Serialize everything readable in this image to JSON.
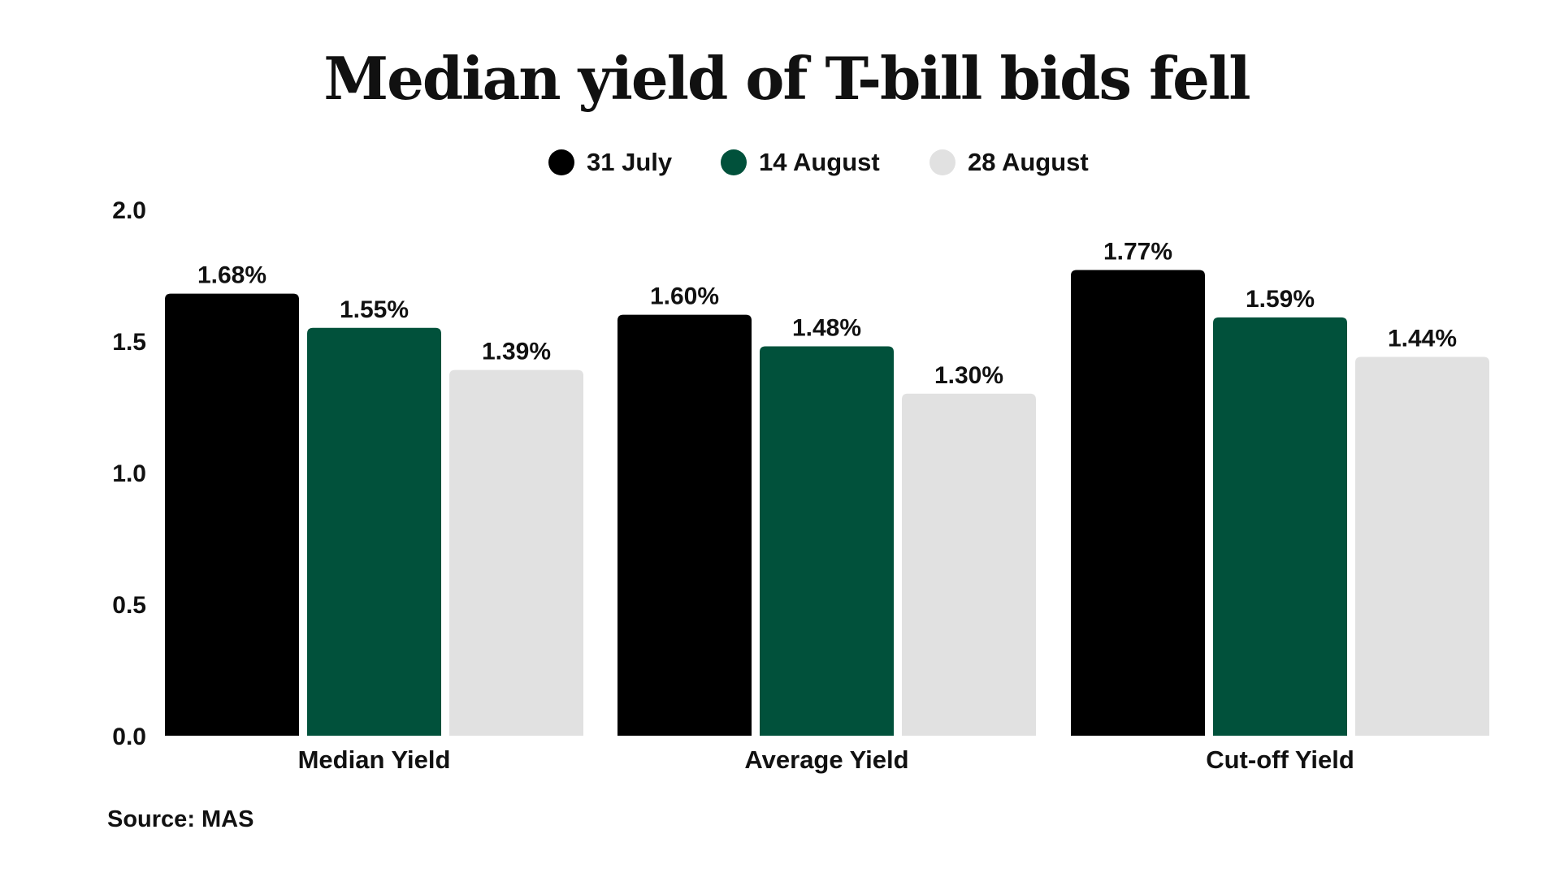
{
  "chart_data": {
    "type": "bar",
    "title": "Median yield of T-bill bids fell",
    "categories": [
      "Median Yield",
      "Average Yield",
      "Cut-off Yield"
    ],
    "series": [
      {
        "name": "31 July",
        "color": "#000000",
        "values": [
          1.68,
          1.6,
          1.77
        ],
        "labels": [
          "1.68%",
          "1.60%",
          "1.77%"
        ]
      },
      {
        "name": "14 August",
        "color": "#01513b",
        "values": [
          1.55,
          1.48,
          1.59
        ],
        "labels": [
          "1.55%",
          "1.48%",
          "1.59%"
        ]
      },
      {
        "name": "28 August",
        "color": "#e1e1e1",
        "values": [
          1.39,
          1.3,
          1.44
        ],
        "labels": [
          "1.39%",
          "1.30%",
          "1.44%"
        ]
      }
    ],
    "yticks": [
      0.0,
      0.5,
      1.0,
      1.5,
      2.0
    ],
    "ytick_labels": [
      "0.0",
      "0.5",
      "1.0",
      "1.5",
      "2.0"
    ],
    "ylim": [
      0,
      2.0
    ],
    "xlabel": "",
    "ylabel": "",
    "grid": false,
    "legend_position": "top-center",
    "source": "Source: MAS"
  }
}
